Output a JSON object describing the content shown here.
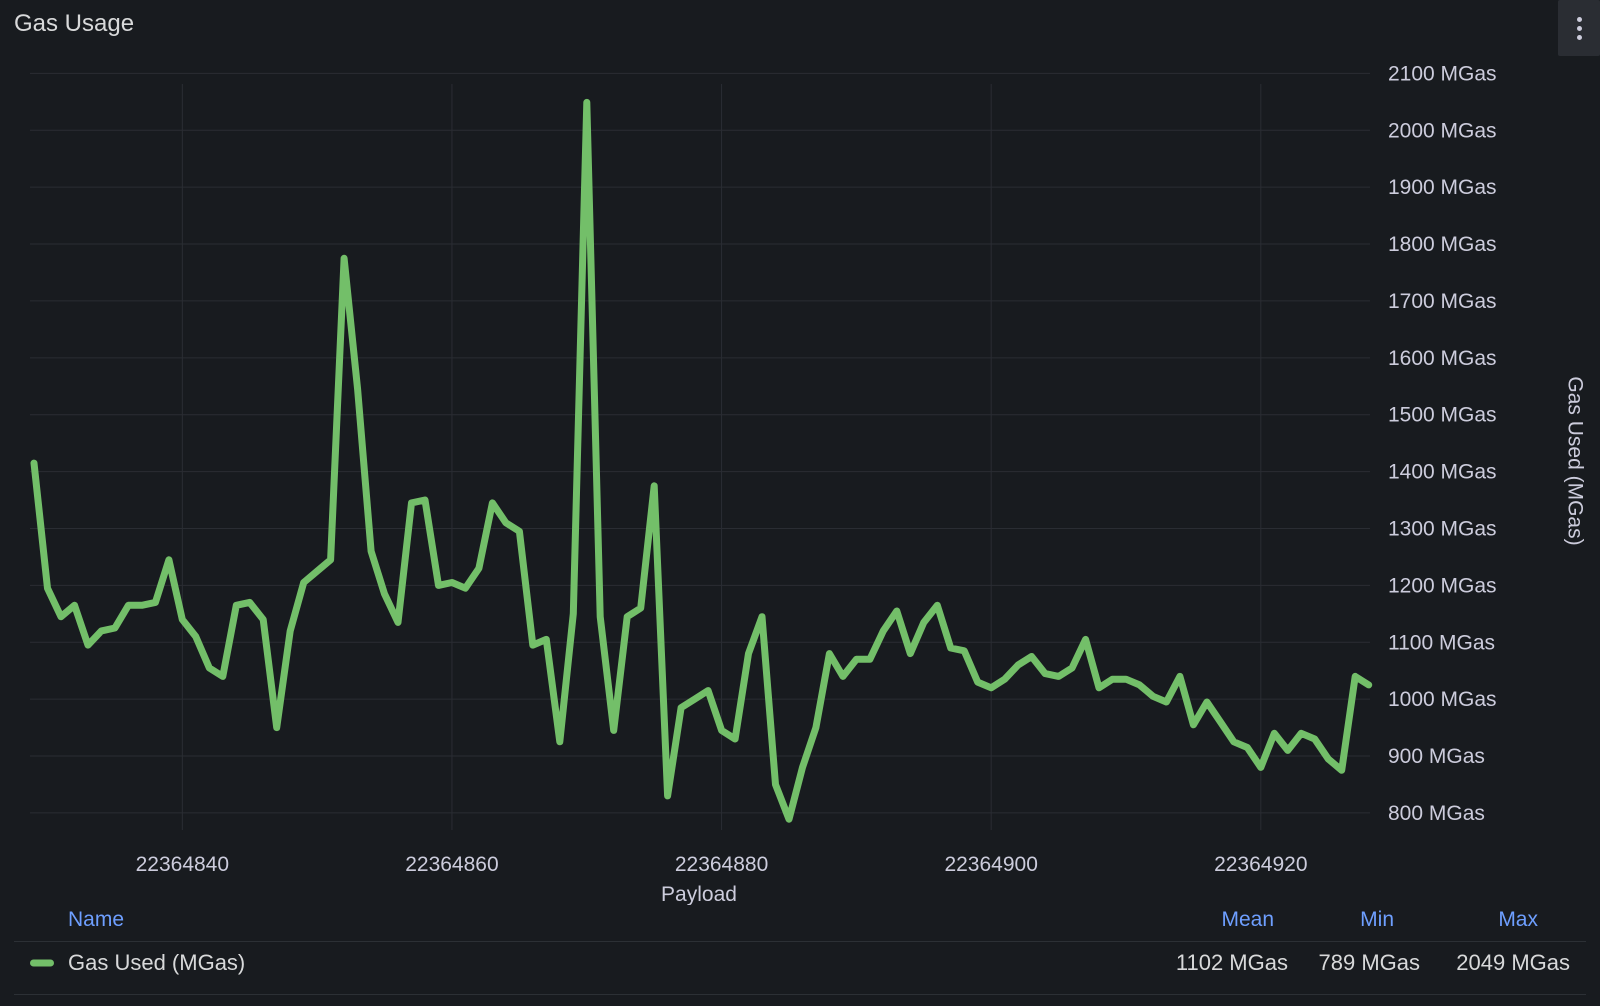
{
  "panel": {
    "title": "Gas Usage",
    "menu_icon": "vertical-ellipsis-icon"
  },
  "chart_data": {
    "type": "line",
    "title": "",
    "xlabel": "Payload",
    "ylabel": "Gas Used (MGas)",
    "y_unit": "MGas",
    "xlim": [
      22364828.7,
      22364928.1
    ],
    "ylim": [
      770,
      2120
    ],
    "x_ticks": [
      22364840,
      22364860,
      22364880,
      22364900,
      22364920
    ],
    "y_ticks": [
      800,
      900,
      1000,
      1100,
      1200,
      1300,
      1400,
      1500,
      1600,
      1700,
      1800,
      1900,
      2000,
      2100
    ],
    "grid": true,
    "legend_placement": "bottom",
    "series": [
      {
        "name": "Gas Used (MGas)",
        "color": "#73bf69",
        "x": [
          22364829,
          22364830,
          22364831,
          22364832,
          22364833,
          22364834,
          22364835,
          22364836,
          22364837,
          22364838,
          22364839,
          22364840,
          22364841,
          22364842,
          22364843,
          22364844,
          22364845,
          22364846,
          22364847,
          22364848,
          22364849,
          22364850,
          22364851,
          22364852,
          22364853,
          22364854,
          22364855,
          22364856,
          22364857,
          22364858,
          22364859,
          22364860,
          22364861,
          22364862,
          22364863,
          22364864,
          22364865,
          22364866,
          22364867,
          22364868,
          22364869,
          22364870,
          22364871,
          22364872,
          22364873,
          22364874,
          22364875,
          22364876,
          22364877,
          22364878,
          22364879,
          22364880,
          22364881,
          22364882,
          22364883,
          22364884,
          22364885,
          22364886,
          22364887,
          22364888,
          22364889,
          22364890,
          22364891,
          22364892,
          22364893,
          22364894,
          22364895,
          22364896,
          22364897,
          22364898,
          22364899,
          22364900,
          22364901,
          22364902,
          22364903,
          22364904,
          22364905,
          22364906,
          22364907,
          22364908,
          22364909,
          22364910,
          22364911,
          22364912,
          22364913,
          22364914,
          22364915,
          22364916,
          22364917,
          22364918,
          22364919,
          22364920,
          22364921,
          22364922,
          22364923,
          22364924,
          22364925,
          22364926,
          22364927,
          22364928
        ],
        "values": [
          1415,
          1195,
          1145,
          1165,
          1095,
          1120,
          1125,
          1165,
          1165,
          1170,
          1245,
          1140,
          1110,
          1055,
          1040,
          1165,
          1170,
          1140,
          950,
          1120,
          1205,
          1225,
          1245,
          1775,
          1545,
          1260,
          1185,
          1135,
          1345,
          1350,
          1200,
          1205,
          1195,
          1230,
          1345,
          1310,
          1295,
          1095,
          1105,
          925,
          1150,
          2049,
          1145,
          945,
          1145,
          1160,
          1375,
          830,
          985,
          1000,
          1015,
          945,
          930,
          1080,
          1145,
          850,
          789,
          880,
          950,
          1080,
          1040,
          1070,
          1070,
          1120,
          1155,
          1080,
          1135,
          1165,
          1090,
          1085,
          1030,
          1020,
          1035,
          1060,
          1075,
          1045,
          1040,
          1055,
          1105,
          1020,
          1035,
          1035,
          1025,
          1005,
          995,
          1040,
          955,
          995,
          960,
          925,
          915,
          880,
          940,
          910,
          940,
          930,
          895,
          875,
          1040,
          1025
        ]
      }
    ],
    "stats": {
      "headers": [
        "Name",
        "Mean",
        "Min",
        "Max"
      ],
      "name": "Gas Used (MGas)",
      "mean": "1102 MGas",
      "min": "789 MGas",
      "max": "2049 MGas"
    }
  }
}
